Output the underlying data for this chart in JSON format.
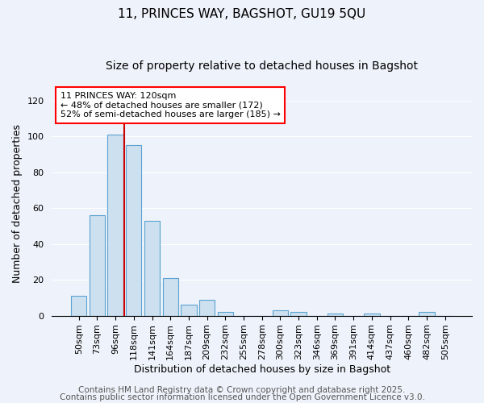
{
  "title": "11, PRINCES WAY, BAGSHOT, GU19 5QU",
  "subtitle": "Size of property relative to detached houses in Bagshot",
  "xlabel": "Distribution of detached houses by size in Bagshot",
  "ylabel": "Number of detached properties",
  "bar_labels": [
    "50sqm",
    "73sqm",
    "96sqm",
    "118sqm",
    "141sqm",
    "164sqm",
    "187sqm",
    "209sqm",
    "232sqm",
    "255sqm",
    "278sqm",
    "300sqm",
    "323sqm",
    "346sqm",
    "369sqm",
    "391sqm",
    "414sqm",
    "437sqm",
    "460sqm",
    "482sqm",
    "505sqm"
  ],
  "bar_values": [
    11,
    56,
    101,
    95,
    53,
    21,
    6,
    9,
    2,
    0,
    0,
    3,
    2,
    0,
    1,
    0,
    1,
    0,
    0,
    2,
    0
  ],
  "bar_color": "#cce0f0",
  "bar_edge_color": "#5ba3d0",
  "vline_color": "#cc0000",
  "vline_index": 3.0,
  "annotation_lines": [
    "11 PRINCES WAY: 120sqm",
    "← 48% of detached houses are smaller (172)",
    "52% of semi-detached houses are larger (185) →"
  ],
  "ylim": [
    0,
    125
  ],
  "yticks": [
    0,
    20,
    40,
    60,
    80,
    100,
    120
  ],
  "footer1": "Contains HM Land Registry data © Crown copyright and database right 2025.",
  "footer2": "Contains public sector information licensed under the Open Government Licence v3.0.",
  "background_color": "#eef2fa",
  "grid_color": "#ffffff",
  "title_fontsize": 11,
  "subtitle_fontsize": 10,
  "axis_label_fontsize": 9,
  "tick_fontsize": 8,
  "annotation_fontsize": 8,
  "footer_fontsize": 7.5
}
